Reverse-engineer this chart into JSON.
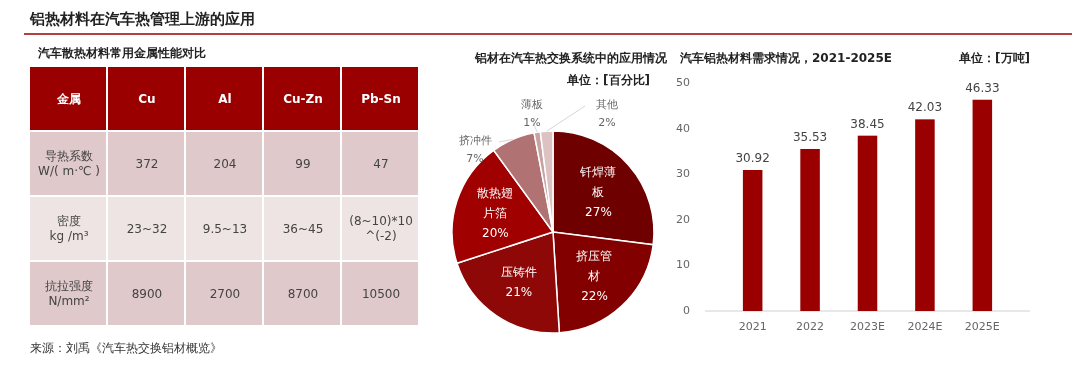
{
  "chart_data": [
    {
      "type": "other",
      "title": "汽车散热材料常用金属性能对比",
      "categories": [
        "金属",
        "Cu",
        "Al",
        "Cu-Zn",
        "Pb-Sn"
      ],
      "y_categories": [
        "导热系数\nW/( m·℃ )",
        "密度\nkg /m³",
        "抗拉强度\nN/mm²"
      ],
      "cell_labels": [
        [
          "372",
          "204",
          "99",
          "47"
        ],
        [
          "23~32",
          "9.5~13",
          "36~45",
          "(8~10)*10\n^(-2)"
        ],
        [
          "8900",
          "2700",
          "8700",
          "10500"
        ]
      ],
      "color": "#9b0000",
      "annotations": [
        "铝热材料在汽车热管理上游的应用",
        "来源：刘禹《汽车热交换铝材概览》"
      ]
    },
    {
      "type": "pie",
      "title": "铝材在汽车热交换系统中的应用情况",
      "subtitle": "单位：[百分比]",
      "categories": [
        "钎焊薄板",
        "挤压管材",
        "压铸件",
        "散热翅片箔",
        "挤冲件",
        "薄板",
        "其他"
      ],
      "values": [
        27,
        22,
        21,
        20,
        7,
        1,
        2
      ],
      "value_labels": [
        "27%",
        "22%",
        "21%",
        "20%",
        "7%",
        "1%",
        "2%"
      ],
      "colors": [
        "#6e0000",
        "#820000",
        "#8e0808",
        "#a00000",
        "#b07272",
        "#c9a2a2",
        "#dcc2c2"
      ]
    },
    {
      "type": "bar",
      "title": "汽车铝热材料需求情况，2021-2025E",
      "subtitle": "单位：[万吨]",
      "categories": [
        "2021",
        "2022",
        "2023E",
        "2024E",
        "2025E"
      ],
      "values": [
        30.92,
        35.53,
        38.45,
        42.03,
        46.33
      ],
      "color": "#9b0000",
      "ylim": [
        0,
        50
      ],
      "yticks": [
        0,
        10,
        20,
        30,
        40,
        50
      ],
      "data_labels": true
    }
  ]
}
